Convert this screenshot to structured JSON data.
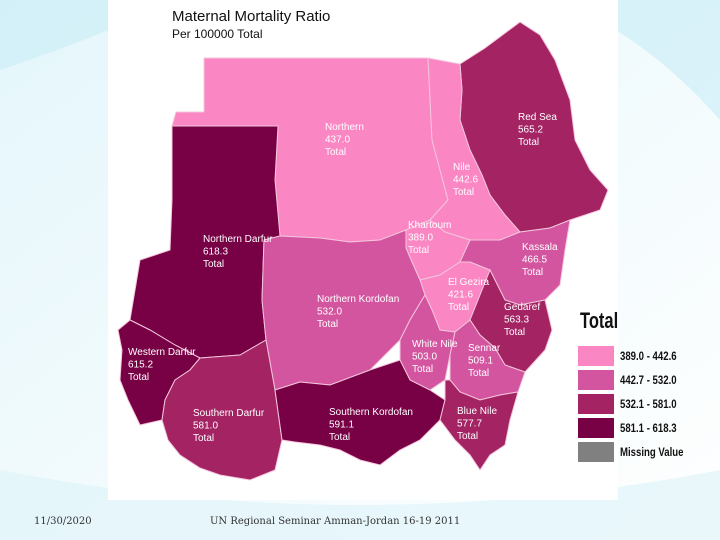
{
  "title": "Maternal Mortality Ratio",
  "subtitle": "Per 100000 Total",
  "legend": {
    "title": "Total",
    "items": [
      {
        "label": "389.0 - 442.6",
        "color": "#fb86c4"
      },
      {
        "label": "442.7 - 532.0",
        "color": "#d3559f"
      },
      {
        "label": "532.1 - 581.0",
        "color": "#a32363"
      },
      {
        "label": "581.1 - 618.3",
        "color": "#780045"
      },
      {
        "label": "Missing Value",
        "color": "#808080"
      }
    ]
  },
  "regions": [
    {
      "name": "Northern",
      "value": "437.0",
      "unit": "Total"
    },
    {
      "name": "Red Sea",
      "value": "565.2",
      "unit": "Total"
    },
    {
      "name": "Nile",
      "value": "442.6",
      "unit": "Total"
    },
    {
      "name": "Northern Darfur",
      "value": "618.3",
      "unit": "Total"
    },
    {
      "name": "Khartoum",
      "value": "389.0",
      "unit": "Total"
    },
    {
      "name": "Kassala",
      "value": "466.5",
      "unit": "Total"
    },
    {
      "name": "El Gezira",
      "value": "421.6",
      "unit": "Total"
    },
    {
      "name": "Northern Kordofan",
      "value": "532.0",
      "unit": "Total"
    },
    {
      "name": "Gedaref",
      "value": "563.3",
      "unit": "Total"
    },
    {
      "name": "Western Darfur",
      "value": "615.2",
      "unit": "Total"
    },
    {
      "name": "White Nile",
      "value": "503.0",
      "unit": "Total"
    },
    {
      "name": "Sennar",
      "value": "509.1",
      "unit": "Total"
    },
    {
      "name": "Southern Darfur",
      "value": "581.0",
      "unit": "Total"
    },
    {
      "name": "Southern Kordofan",
      "value": "591.1",
      "unit": "Total"
    },
    {
      "name": "Blue Nile",
      "value": "577.7",
      "unit": "Total"
    }
  ],
  "footer": {
    "date": "11/30/2020",
    "text": "UN Regional Seminar Amman-Jordan 16-19 2011"
  }
}
